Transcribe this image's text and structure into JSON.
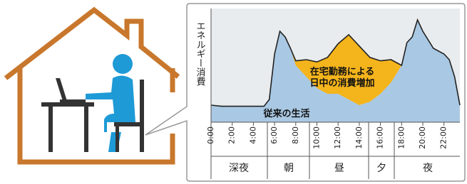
{
  "chart_data": {
    "type": "stacked-area",
    "y_label": "エネルギー消費",
    "x": [
      0,
      1,
      2,
      3,
      4,
      5,
      5.5,
      6,
      6.5,
      7,
      7.5,
      8,
      9,
      10,
      11,
      12,
      13,
      14,
      15,
      16,
      17,
      18,
      18.5,
      19,
      19.5,
      20,
      21,
      22,
      22.5,
      23,
      23.5
    ],
    "series": [
      {
        "name": "従来の生活",
        "color": "#a9c8e3",
        "values": [
          15,
          14,
          14,
          14,
          14,
          14,
          20,
          60,
          80,
          75,
          65,
          50,
          40,
          30,
          25,
          25,
          20,
          15,
          18,
          25,
          35,
          50,
          70,
          75,
          90,
          80,
          65,
          60,
          55,
          40,
          15
        ]
      },
      {
        "name": "在宅勤務による日中の消費増加",
        "color": "#f4b41c",
        "values": [
          0,
          0,
          0,
          0,
          0,
          0,
          0,
          0,
          0,
          0,
          0,
          4,
          15,
          23,
          32,
          44,
          57,
          52,
          39,
          29,
          20,
          0,
          0,
          0,
          0,
          0,
          0,
          0,
          0,
          0,
          0
        ]
      }
    ],
    "line_color": "#222222",
    "xlim": [
      0,
      23.5
    ],
    "ylim": [
      0,
      100
    ],
    "xticks": [
      {
        "value": 0,
        "label": "0:00"
      },
      {
        "value": 2,
        "label": "2:00"
      },
      {
        "value": 4,
        "label": "4:00"
      },
      {
        "value": 6,
        "label": "6:00"
      },
      {
        "value": 8,
        "label": "8:00"
      },
      {
        "value": 10,
        "label": "10:00"
      },
      {
        "value": 12,
        "label": "12:00"
      },
      {
        "value": 14,
        "label": "14:00"
      },
      {
        "value": 16,
        "label": "16:00"
      },
      {
        "value": 18,
        "label": "18:00"
      },
      {
        "value": 20,
        "label": "20:00"
      },
      {
        "value": 22,
        "label": "22:00"
      }
    ],
    "periods": [
      "深夜",
      "朝",
      "昼",
      "夕",
      "夜"
    ]
  }
}
